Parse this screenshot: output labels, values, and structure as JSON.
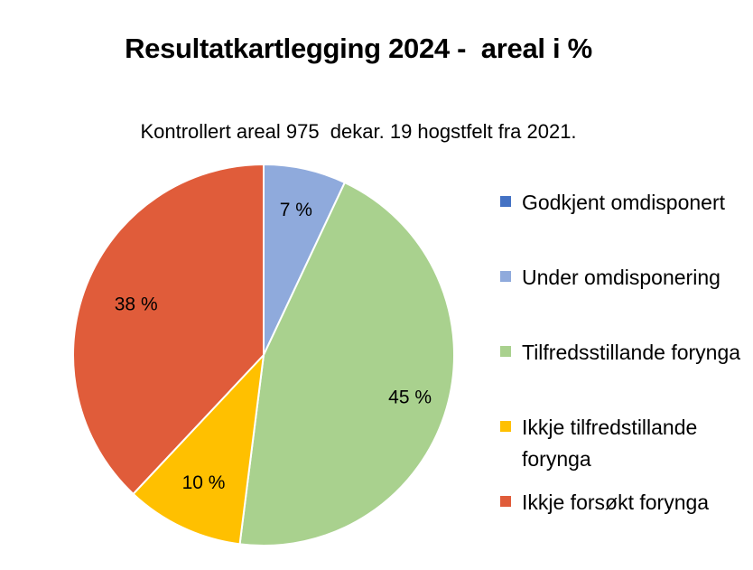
{
  "chart_data": {
    "type": "pie",
    "title": "Resultatkartlegging 2024 -  areal i %",
    "subtitle": "Kontrollert areal 975  dekar. 19 hogstfelt fra 2021.",
    "legend_position": "right",
    "slices": [
      {
        "name": "Godkjent omdisponert",
        "value": 0,
        "label": "",
        "color": "#4472C4"
      },
      {
        "name": "Under omdisponering",
        "value": 7,
        "label": "7 %",
        "color": "#8FAADC"
      },
      {
        "name": "Tilfredsstillande forynga",
        "value": 45,
        "label": "45 %",
        "color": "#A9D18E"
      },
      {
        "name": "Ikkje tilfredstillande forynga",
        "value": 10,
        "label": "10 %",
        "color": "#FFC000"
      },
      {
        "name": "Ikkje forsøkt forynga",
        "value": 38,
        "label": "38 %",
        "color": "#E05C3A"
      }
    ]
  }
}
